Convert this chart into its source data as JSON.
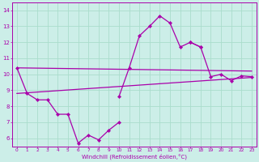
{
  "xlabel": "Windchill (Refroidissement éolien,°C)",
  "background_color": "#cceee8",
  "grid_color": "#aaddcc",
  "line_color": "#aa00aa",
  "hours": [
    0,
    1,
    2,
    3,
    4,
    5,
    6,
    7,
    8,
    9,
    10,
    11,
    12,
    13,
    14,
    15,
    16,
    17,
    18,
    19,
    20,
    21,
    22,
    23
  ],
  "series1": [
    10.4,
    8.8,
    8.4,
    8.4,
    7.5,
    7.5,
    5.7,
    6.2,
    5.9,
    6.5,
    7.0,
    null,
    null,
    null,
    null,
    null,
    null,
    null,
    null,
    null,
    null,
    null,
    null,
    null
  ],
  "series2": [
    null,
    null,
    null,
    null,
    null,
    null,
    null,
    null,
    null,
    null,
    8.6,
    10.4,
    12.4,
    13.0,
    13.65,
    13.2,
    11.7,
    12.0,
    11.7,
    null,
    null,
    null,
    null,
    null
  ],
  "series3": [
    null,
    null,
    null,
    null,
    null,
    null,
    null,
    null,
    null,
    null,
    null,
    null,
    null,
    null,
    null,
    null,
    null,
    12.0,
    11.7,
    9.85,
    10.0,
    9.6,
    9.9,
    9.85
  ],
  "trend1_x": [
    0,
    23
  ],
  "trend1_y": [
    10.4,
    10.2
  ],
  "trend2_x": [
    0,
    23
  ],
  "trend2_y": [
    8.8,
    9.8
  ],
  "ylim": [
    5.5,
    14.5
  ],
  "yticks": [
    6,
    7,
    8,
    9,
    10,
    11,
    12,
    13,
    14
  ],
  "xticks": [
    0,
    1,
    2,
    3,
    4,
    5,
    6,
    7,
    8,
    9,
    10,
    11,
    12,
    13,
    14,
    15,
    16,
    17,
    18,
    19,
    20,
    21,
    22,
    23
  ]
}
